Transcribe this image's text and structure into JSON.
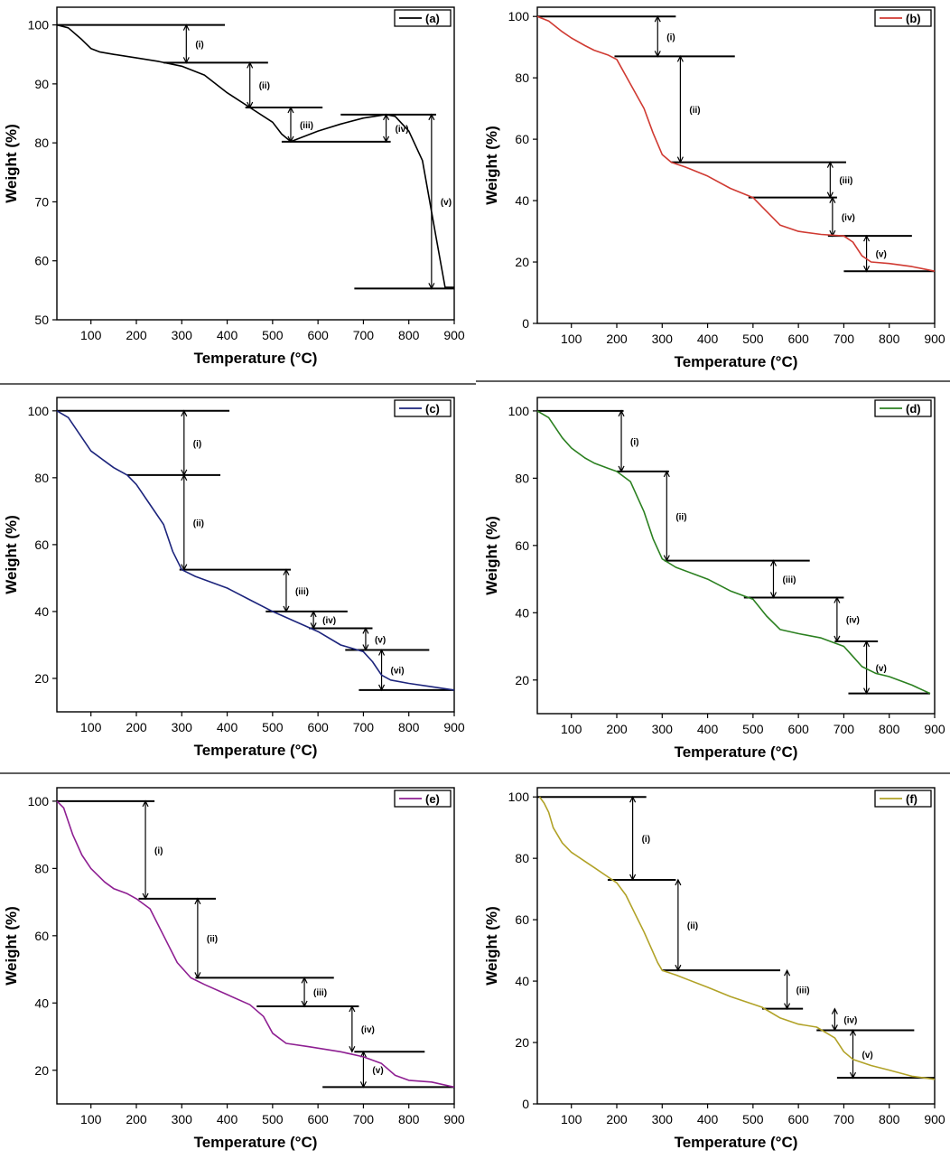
{
  "figure": {
    "x_label": "Temperature (°C)",
    "y_label": "Weight (%)"
  },
  "chart_data": [
    {
      "type": "line",
      "panel": "(a)",
      "color": "#000000",
      "xlabel": "Temperature (°C)",
      "ylabel": "Weight (%)",
      "xlim": [
        25,
        900
      ],
      "ylim": [
        50,
        103
      ],
      "xticks": [
        100,
        200,
        300,
        400,
        500,
        600,
        700,
        800,
        900
      ],
      "yticks": [
        50,
        60,
        70,
        80,
        90,
        100
      ],
      "x": [
        25,
        50,
        80,
        100,
        120,
        150,
        200,
        250,
        300,
        350,
        400,
        450,
        500,
        520,
        540,
        560,
        600,
        650,
        700,
        750,
        770,
        800,
        830,
        860,
        880,
        900
      ],
      "y": [
        100,
        99.5,
        97.5,
        96,
        95.4,
        95,
        94.4,
        93.8,
        93,
        91.5,
        88.5,
        86,
        83.5,
        81.5,
        80.2,
        80.8,
        82,
        83.2,
        84.2,
        84.8,
        84.5,
        82,
        77,
        64,
        55.5,
        55.5
      ],
      "steps": [
        {
          "level": 100,
          "x1": 25,
          "x2": 395
        },
        {
          "level": 93.6,
          "x1": 260,
          "x2": 490
        },
        {
          "level": 86,
          "x1": 440,
          "x2": 610
        },
        {
          "level": 80.2,
          "x1": 520,
          "x2": 760
        },
        {
          "level": 84.8,
          "x1": 650,
          "x2": 860
        },
        {
          "level": 55.3,
          "x1": 680,
          "x2": 900
        }
      ],
      "arrows": [
        {
          "x": 310,
          "from": 100,
          "to": 93.6,
          "label": "(i)"
        },
        {
          "x": 450,
          "from": 93.6,
          "to": 86,
          "label": "(ii)"
        },
        {
          "x": 540,
          "from": 86,
          "to": 80.2,
          "label": "(iii)"
        },
        {
          "x": 750,
          "from": 80.2,
          "to": 84.8,
          "label": "(iv)"
        },
        {
          "x": 850,
          "from": 84.8,
          "to": 55.3,
          "label": "(v)"
        }
      ]
    },
    {
      "type": "line",
      "panel": "(b)",
      "color": "#d03a32",
      "xlabel": "Temperature (°C)",
      "ylabel": "Weight (%)",
      "xlim": [
        25,
        900
      ],
      "ylim": [
        0,
        103
      ],
      "xticks": [
        100,
        200,
        300,
        400,
        500,
        600,
        700,
        800,
        900
      ],
      "yticks": [
        0,
        20,
        40,
        60,
        80,
        100
      ],
      "x": [
        25,
        50,
        80,
        100,
        130,
        150,
        180,
        200,
        230,
        260,
        280,
        300,
        320,
        350,
        400,
        450,
        500,
        520,
        560,
        600,
        650,
        700,
        720,
        740,
        760,
        800,
        850,
        900
      ],
      "y": [
        100,
        98.5,
        95,
        93,
        90.5,
        89,
        87.5,
        86,
        78,
        70,
        62,
        55,
        52.5,
        51,
        48,
        44,
        41,
        38,
        32,
        30,
        29,
        28.5,
        26.5,
        22,
        20,
        19.5,
        18.5,
        17
      ],
      "steps": [
        {
          "level": 100,
          "x1": 25,
          "x2": 330
        },
        {
          "level": 87,
          "x1": 195,
          "x2": 460
        },
        {
          "level": 52.5,
          "x1": 320,
          "x2": 705
        },
        {
          "level": 41,
          "x1": 490,
          "x2": 685
        },
        {
          "level": 28.5,
          "x1": 665,
          "x2": 850
        },
        {
          "level": 17,
          "x1": 700,
          "x2": 900
        }
      ],
      "arrows": [
        {
          "x": 290,
          "from": 100,
          "to": 87,
          "label": "(i)"
        },
        {
          "x": 340,
          "from": 87,
          "to": 52.5,
          "label": "(ii)"
        },
        {
          "x": 670,
          "from": 52.5,
          "to": 41,
          "label": "(iii)"
        },
        {
          "x": 675,
          "from": 41,
          "to": 28.5,
          "label": "(iv)"
        },
        {
          "x": 750,
          "from": 28.5,
          "to": 17,
          "label": "(v)"
        }
      ]
    },
    {
      "type": "line",
      "panel": "(c)",
      "color": "#1c247c",
      "xlabel": "Temperature (°C)",
      "ylabel": "Weight (%)",
      "xlim": [
        25,
        900
      ],
      "ylim": [
        10,
        104
      ],
      "xticks": [
        100,
        200,
        300,
        400,
        500,
        600,
        700,
        800,
        900
      ],
      "yticks": [
        20,
        40,
        60,
        80,
        100
      ],
      "x": [
        25,
        50,
        80,
        100,
        130,
        150,
        180,
        200,
        230,
        260,
        280,
        300,
        330,
        400,
        450,
        500,
        550,
        600,
        650,
        700,
        720,
        740,
        760,
        800,
        850,
        900
      ],
      "y": [
        100,
        98,
        92,
        88,
        85,
        83,
        80.8,
        78,
        72,
        66,
        58,
        52.5,
        50.5,
        47,
        43.5,
        40,
        37,
        34,
        30,
        28,
        25,
        21,
        19.5,
        18.5,
        17.5,
        16.5
      ],
      "steps": [
        {
          "level": 100,
          "x1": 25,
          "x2": 405
        },
        {
          "level": 80.8,
          "x1": 180,
          "x2": 385
        },
        {
          "level": 52.5,
          "x1": 295,
          "x2": 540
        },
        {
          "level": 40,
          "x1": 485,
          "x2": 665
        },
        {
          "level": 35,
          "x1": 580,
          "x2": 720
        },
        {
          "level": 28.5,
          "x1": 660,
          "x2": 845
        },
        {
          "level": 16.5,
          "x1": 690,
          "x2": 900
        }
      ],
      "arrows": [
        {
          "x": 305,
          "from": 100,
          "to": 80.8,
          "label": "(i)"
        },
        {
          "x": 305,
          "from": 80.8,
          "to": 52.5,
          "label": "(ii)"
        },
        {
          "x": 530,
          "from": 52.5,
          "to": 40,
          "label": "(iii)"
        },
        {
          "x": 590,
          "from": 40,
          "to": 35,
          "label": "(iv)"
        },
        {
          "x": 705,
          "from": 35,
          "to": 28.5,
          "label": "(v)"
        },
        {
          "x": 740,
          "from": 28.5,
          "to": 16.5,
          "label": "(vi)"
        }
      ]
    },
    {
      "type": "line",
      "panel": "(d)",
      "color": "#2b8020",
      "xlabel": "Temperature (°C)",
      "ylabel": "Weight (%)",
      "xlim": [
        25,
        900
      ],
      "ylim": [
        10,
        104
      ],
      "xticks": [
        100,
        200,
        300,
        400,
        500,
        600,
        700,
        800,
        900
      ],
      "yticks": [
        20,
        40,
        60,
        80,
        100
      ],
      "x": [
        25,
        50,
        80,
        100,
        130,
        150,
        180,
        200,
        230,
        260,
        280,
        300,
        330,
        400,
        450,
        500,
        530,
        560,
        600,
        650,
        700,
        720,
        740,
        770,
        800,
        850,
        890
      ],
      "y": [
        100,
        98,
        92,
        89,
        86,
        84.5,
        83,
        82,
        79,
        70,
        62,
        56,
        53.5,
        50,
        46.5,
        44,
        39,
        35,
        33.8,
        32.5,
        30,
        27,
        24,
        22,
        21,
        18.5,
        16
      ],
      "steps": [
        {
          "level": 100,
          "x1": 25,
          "x2": 215
        },
        {
          "level": 82,
          "x1": 200,
          "x2": 315
        },
        {
          "level": 55.5,
          "x1": 305,
          "x2": 625
        },
        {
          "level": 44.5,
          "x1": 480,
          "x2": 700
        },
        {
          "level": 31.5,
          "x1": 680,
          "x2": 775
        },
        {
          "level": 16,
          "x1": 710,
          "x2": 890
        }
      ],
      "arrows": [
        {
          "x": 210,
          "from": 100,
          "to": 82,
          "label": "(i)"
        },
        {
          "x": 310,
          "from": 82,
          "to": 55.5,
          "label": "(ii)"
        },
        {
          "x": 545,
          "from": 55.5,
          "to": 44.5,
          "label": "(iii)"
        },
        {
          "x": 685,
          "from": 44.5,
          "to": 31.5,
          "label": "(iv)"
        },
        {
          "x": 750,
          "from": 31.5,
          "to": 16,
          "label": "(v)"
        }
      ]
    },
    {
      "type": "line",
      "panel": "(e)",
      "color": "#8e1f92",
      "xlabel": "Temperature (°C)",
      "ylabel": "Weight (%)",
      "xlim": [
        25,
        900
      ],
      "ylim": [
        10,
        104
      ],
      "xticks": [
        100,
        200,
        300,
        400,
        500,
        600,
        700,
        800,
        900
      ],
      "yticks": [
        20,
        40,
        60,
        80,
        100
      ],
      "x": [
        25,
        40,
        60,
        80,
        100,
        130,
        150,
        180,
        200,
        230,
        260,
        290,
        320,
        350,
        400,
        450,
        480,
        500,
        530,
        580,
        650,
        700,
        740,
        770,
        800,
        850,
        900
      ],
      "y": [
        100,
        98,
        90,
        84,
        80,
        76,
        74,
        72.5,
        71,
        68,
        60,
        52,
        47.5,
        45.5,
        42.5,
        39.5,
        36,
        31,
        28,
        27,
        25.5,
        24,
        22,
        18.5,
        17,
        16.5,
        15
      ],
      "steps": [
        {
          "level": 100,
          "x1": 25,
          "x2": 240
        },
        {
          "level": 71,
          "x1": 205,
          "x2": 375
        },
        {
          "level": 47.5,
          "x1": 330,
          "x2": 635
        },
        {
          "level": 39,
          "x1": 465,
          "x2": 690
        },
        {
          "level": 25.5,
          "x1": 680,
          "x2": 835
        },
        {
          "level": 15,
          "x1": 610,
          "x2": 900
        }
      ],
      "arrows": [
        {
          "x": 220,
          "from": 100,
          "to": 71,
          "label": "(i)"
        },
        {
          "x": 335,
          "from": 71,
          "to": 47.5,
          "label": "(ii)"
        },
        {
          "x": 570,
          "from": 47.5,
          "to": 39,
          "label": "(iii)"
        },
        {
          "x": 675,
          "from": 39,
          "to": 25.5,
          "label": "(iv)"
        },
        {
          "x": 700,
          "from": 25.5,
          "to": 15,
          "label": "(v)"
        }
      ]
    },
    {
      "type": "line",
      "panel": "(f)",
      "color": "#b1a227",
      "xlabel": "Temperature (°C)",
      "ylabel": "Weight (%)",
      "xlim": [
        25,
        900
      ],
      "ylim": [
        0,
        103
      ],
      "xticks": [
        100,
        200,
        300,
        400,
        500,
        600,
        700,
        800,
        900
      ],
      "yticks": [
        0,
        20,
        40,
        60,
        80,
        100
      ],
      "x": [
        30,
        40,
        50,
        60,
        80,
        100,
        130,
        150,
        180,
        200,
        220,
        240,
        260,
        290,
        300,
        330,
        400,
        450,
        500,
        520,
        560,
        600,
        640,
        680,
        700,
        720,
        760,
        800,
        850,
        900
      ],
      "y": [
        100,
        98,
        95,
        90,
        85,
        82,
        79,
        77,
        74,
        72,
        68,
        62,
        56,
        46,
        43.5,
        42,
        38,
        35,
        32.5,
        31.5,
        28,
        26,
        25,
        21.5,
        17,
        14.5,
        12.5,
        11,
        9,
        8
      ],
      "steps": [
        {
          "level": 100,
          "x1": 25,
          "x2": 265
        },
        {
          "level": 73,
          "x1": 180,
          "x2": 330
        },
        {
          "level": 43.5,
          "x1": 300,
          "x2": 560
        },
        {
          "level": 31,
          "x1": 520,
          "x2": 610
        },
        {
          "level": 24,
          "x1": 640,
          "x2": 855
        },
        {
          "level": 8.5,
          "x1": 685,
          "x2": 900
        }
      ],
      "arrows": [
        {
          "x": 235,
          "from": 100,
          "to": 73,
          "label": "(i)"
        },
        {
          "x": 335,
          "from": 73,
          "to": 43.5,
          "label": "(ii)"
        },
        {
          "x": 575,
          "from": 43.5,
          "to": 31,
          "label": "(iii)"
        },
        {
          "x": 680,
          "from": 31,
          "to": 24,
          "label": "(iv)"
        },
        {
          "x": 720,
          "from": 24,
          "to": 8.5,
          "label": "(v)"
        }
      ]
    }
  ]
}
